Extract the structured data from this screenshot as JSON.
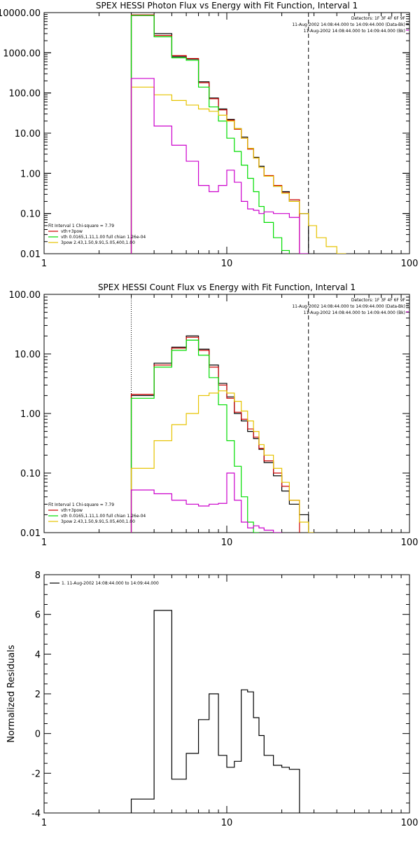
{
  "chart_data": [
    {
      "type": "line",
      "title": "SPEX HESSI Photon Flux vs Energy with Fit Function, Interval 1",
      "xlabel": "",
      "ylabel": "",
      "x_scale": "log",
      "y_scale": "log",
      "xlim": [
        1,
        100
      ],
      "ylim": [
        0.01,
        10000
      ],
      "x_ticks": [
        "1",
        "10",
        "100"
      ],
      "y_ticks": [
        "0.01",
        "0.10",
        "1.00",
        "10.00",
        "100.00",
        "1000.00",
        "10000.00"
      ],
      "vertical_lines": [
        {
          "x": 3.0,
          "style": "dotted"
        },
        {
          "x": 28.0,
          "style": "dashed"
        }
      ],
      "header_text": [
        "Detectors: 1F 3F 4F 6F 9F",
        "11-Aug-2002 14:08:44.000 to 14:09:44.000 (Data-Bk)",
        "11-Aug-2002 14:08:44.000 to 14:09:44.000 (Bk)"
      ],
      "fit_info": {
        "fit_label": "Fit Interval 1    Chi-square = 7.79",
        "lines": [
          {
            "color": "#cc0000",
            "text": "vth+3pow"
          },
          {
            "color": "#00dd00",
            "text": "vth 0.0165,1.11,1.00  full chian 1.26e-04"
          },
          {
            "color": "#e6c300",
            "text": "3pow 2.43,1.50,9.91,5.05,400,1.00"
          }
        ]
      },
      "bin_edges": [
        3,
        4,
        5,
        6,
        7,
        8,
        9,
        10,
        11,
        12,
        13,
        14,
        15,
        16,
        18,
        20,
        22,
        25,
        28,
        31,
        35,
        40,
        45
      ],
      "series": [
        {
          "name": "",
          "color": "#000000",
          "values": [
            8500,
            3000,
            800,
            700,
            190,
            75,
            40,
            22,
            13,
            8,
            4.2,
            2.5,
            1.5,
            0.85,
            0.48,
            0.35,
            0.2,
            0.1
          ]
        },
        {
          "name": "",
          "color": "#cc0000",
          "values": [
            8800,
            2700,
            850,
            720,
            180,
            72,
            38,
            21,
            12.5,
            7.5,
            4.0,
            2.4,
            1.4,
            0.88,
            0.5,
            0.33,
            0.22
          ]
        },
        {
          "name": "",
          "color": "#00dd00",
          "values": [
            8500,
            2500,
            750,
            650,
            140,
            45,
            20,
            7.5,
            3.5,
            1.6,
            0.75,
            0.35,
            0.15,
            0.06,
            0.025,
            0.012
          ]
        },
        {
          "name": "",
          "color": "#e6c300",
          "values": [
            140,
            90,
            65,
            50,
            40,
            35,
            28,
            20,
            13,
            7.5,
            4.2,
            2.4,
            1.4,
            0.85,
            0.48,
            0.32,
            0.2,
            0.1,
            0.05,
            0.025,
            0.015,
            0.01
          ]
        },
        {
          "name": "",
          "color": "#cc00cc",
          "values": [
            230,
            15,
            5,
            2,
            0.5,
            0.35,
            0.5,
            1.2,
            0.6,
            0.2,
            0.13,
            0.12,
            0.1,
            0.11,
            0.1,
            0.1,
            0.08,
            0.01
          ]
        }
      ]
    },
    {
      "type": "line",
      "title": "SPEX HESSI Count Flux vs Energy with Fit Function, Interval 1",
      "xlabel": "",
      "ylabel": "",
      "x_scale": "log",
      "y_scale": "log",
      "xlim": [
        1,
        100
      ],
      "ylim": [
        0.01,
        100
      ],
      "x_ticks": [
        "1",
        "10",
        "100"
      ],
      "y_ticks": [
        "0.01",
        "0.10",
        "1.00",
        "10.00",
        "100.00"
      ],
      "vertical_lines": [
        {
          "x": 3.0,
          "style": "dotted"
        },
        {
          "x": 28.0,
          "style": "dashed"
        }
      ],
      "header_text": [
        "Detectors: 1F 3F 4F 6F 9F",
        "11-Aug-2002 14:08:44.000 to 14:09:44.000 (Data-Bk)",
        "11-Aug-2002 14:08:44.000 to 14:09:44.000 (Bk)"
      ],
      "fit_info": {
        "fit_label": "Fit Interval 1    Chi-square = 7.79",
        "lines": [
          {
            "color": "#cc0000",
            "text": "vth+3pow"
          },
          {
            "color": "#00dd00",
            "text": "vth 0.0165,1.11,1.00  full chian 1.26e-04"
          },
          {
            "color": "#e6c300",
            "text": "3pow 2.43,1.50,9.91,5.05,400,1.00"
          }
        ]
      },
      "bin_edges": [
        3,
        4,
        5,
        6,
        7,
        8,
        9,
        10,
        11,
        12,
        13,
        14,
        15,
        16,
        18,
        20,
        22,
        25,
        28,
        30
      ],
      "series": [
        {
          "name": "",
          "color": "#000000",
          "values": [
            2.0,
            7.0,
            13,
            20,
            12,
            6.5,
            3.2,
            1.9,
            1.0,
            0.75,
            0.5,
            0.38,
            0.25,
            0.15,
            0.09,
            0.05,
            0.03,
            0.02
          ]
        },
        {
          "name": "",
          "color": "#cc0000",
          "values": [
            2.1,
            6.5,
            12.5,
            19,
            11.5,
            6.0,
            3.0,
            1.8,
            1.05,
            0.8,
            0.55,
            0.4,
            0.26,
            0.16,
            0.1,
            0.06,
            0.035
          ]
        },
        {
          "name": "",
          "color": "#00dd00",
          "values": [
            1.8,
            6.0,
            11.5,
            17,
            9.5,
            4.0,
            1.4,
            0.35,
            0.13,
            0.04,
            0.015,
            0.01
          ]
        },
        {
          "name": "",
          "color": "#e6c300",
          "values": [
            0.12,
            0.35,
            0.65,
            1.0,
            2.0,
            2.2,
            2.4,
            2.2,
            1.6,
            1.1,
            0.75,
            0.5,
            0.3,
            0.2,
            0.12,
            0.07,
            0.035,
            0.015,
            0.01
          ]
        },
        {
          "name": "",
          "color": "#cc00cc",
          "values": [
            0.052,
            0.045,
            0.035,
            0.03,
            0.028,
            0.03,
            0.031,
            0.1,
            0.035,
            0.015,
            0.012,
            0.013,
            0.012,
            0.011,
            0.01
          ]
        }
      ]
    },
    {
      "type": "line",
      "title": "",
      "xlabel": "",
      "ylabel": "Normalized Residuals",
      "x_scale": "log",
      "y_scale": "linear",
      "xlim": [
        1,
        100
      ],
      "ylim": [
        -4,
        8
      ],
      "x_ticks": [
        "1",
        "10",
        "100"
      ],
      "y_ticks": [
        "-4",
        "-2",
        "0",
        "2",
        "4",
        "6",
        "8"
      ],
      "legend_entry": {
        "color": "#000000",
        "text": "1. 11-Aug-2002 14:08:44.000 to 14:09:44.000"
      },
      "bin_edges": [
        3,
        4,
        5,
        6,
        7,
        8,
        9,
        10,
        11,
        12,
        13,
        14,
        15,
        16,
        18,
        20,
        22,
        25,
        28
      ],
      "series": [
        {
          "name": "",
          "color": "#000000",
          "values": [
            -3.3,
            6.2,
            -2.3,
            -1.0,
            0.7,
            2.0,
            -1.1,
            -1.7,
            -1.4,
            2.2,
            2.1,
            0.8,
            -0.1,
            -1.1,
            -1.6,
            -1.7,
            -1.8
          ]
        }
      ]
    }
  ]
}
